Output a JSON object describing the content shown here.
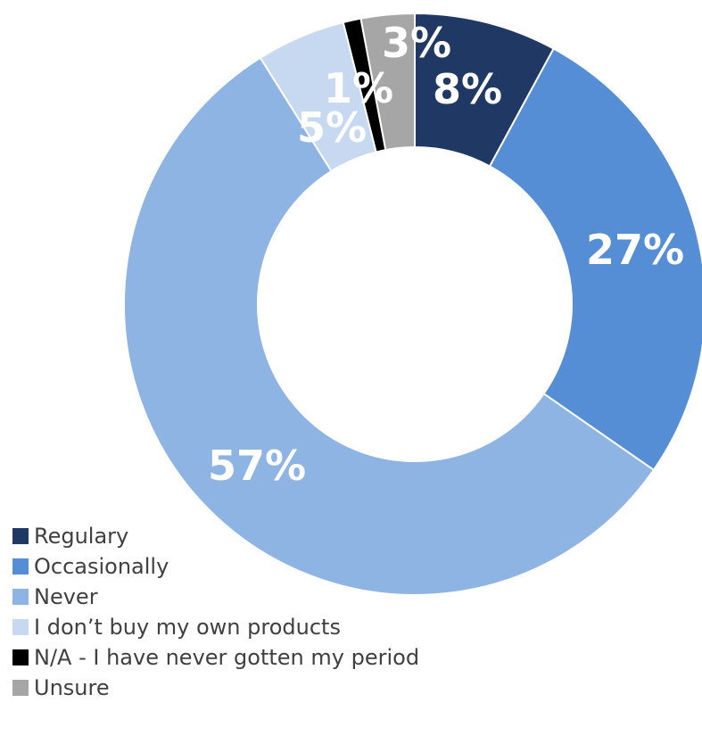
{
  "chart_data": {
    "type": "pie",
    "variant": "donut",
    "title": "",
    "categories": [
      "Regulary",
      "Occasionally",
      "Never",
      "I don’t buy my own products",
      "N/A - I have never gotten my period",
      "Unsure"
    ],
    "values": [
      8,
      27,
      57,
      5,
      1,
      3
    ],
    "value_labels": [
      "8%",
      "27%",
      "57%",
      "5%",
      "1%",
      "3%"
    ],
    "colors": [
      "#1F3864",
      "#558ED5",
      "#8EB4E3",
      "#C6D9F1",
      "#000000",
      "#A6A6A6"
    ],
    "legend_position": "bottom-left"
  }
}
